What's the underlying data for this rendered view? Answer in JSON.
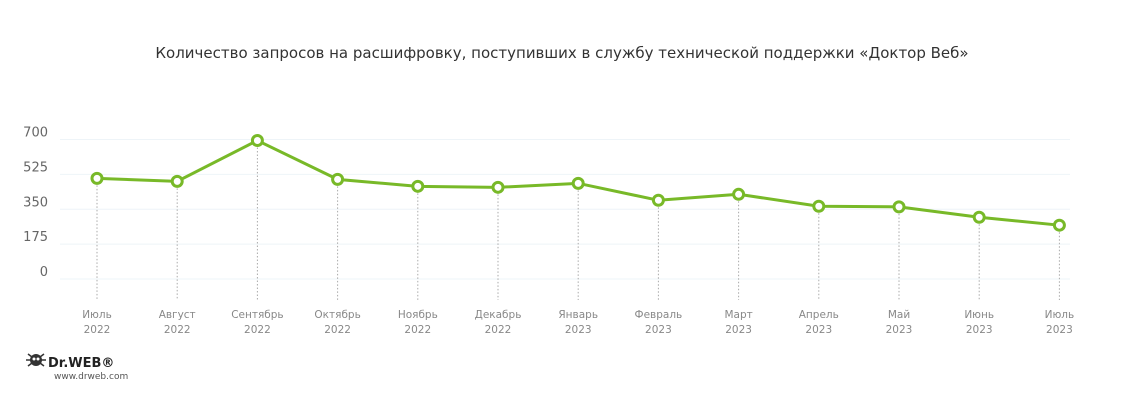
{
  "chart_data": {
    "type": "line",
    "title": "Количество запросов на расшифровку, поступивших в службу технической поддержки «Доктор Веб»",
    "categories": [
      [
        "Июль",
        "2022"
      ],
      [
        "Август",
        "2022"
      ],
      [
        "Сентябрь",
        "2022"
      ],
      [
        "Октябрь",
        "2022"
      ],
      [
        "Ноябрь",
        "2022"
      ],
      [
        "Декабрь",
        "2022"
      ],
      [
        "Январь",
        "2023"
      ],
      [
        "Февраль",
        "2023"
      ],
      [
        "Март",
        "2023"
      ],
      [
        "Апрель",
        "2023"
      ],
      [
        "Май",
        "2023"
      ],
      [
        "Июнь",
        "2023"
      ],
      [
        "Июль",
        "2023"
      ]
    ],
    "values": [
      505,
      490,
      695,
      500,
      465,
      460,
      480,
      395,
      425,
      365,
      362,
      310,
      270
    ],
    "yticks": [
      0,
      175,
      350,
      525,
      700
    ],
    "ylim": [
      0,
      700
    ],
    "grid": true,
    "line_color": "#78b928"
  },
  "logo": {
    "brand": "Dr.WEB®",
    "url": "www.drweb.com"
  }
}
